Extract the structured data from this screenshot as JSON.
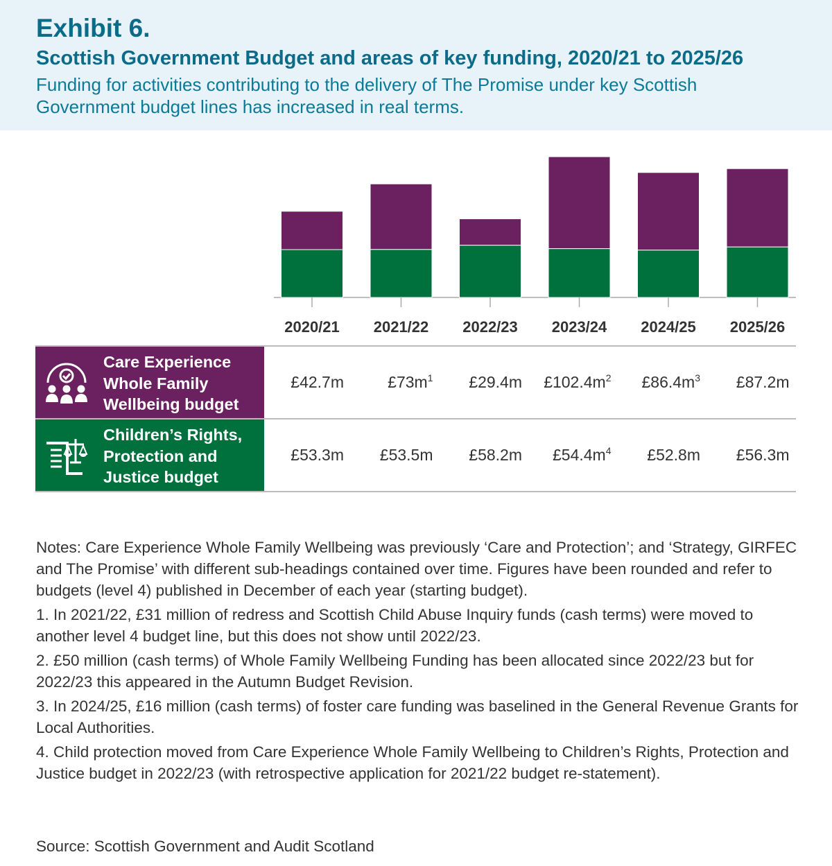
{
  "header": {
    "exhibit": "Exhibit 6.",
    "title": "Scottish Government Budget and areas of key funding, 2020/21 to 2025/26",
    "subtitle": "Funding for activities contributing to the delivery of The Promise under key Scottish Government budget lines has increased in real terms."
  },
  "chart_data": {
    "type": "bar",
    "stacked": true,
    "categories": [
      "2020/21",
      "2021/22",
      "2022/23",
      "2023/24",
      "2024/25",
      "2025/26"
    ],
    "series": [
      {
        "name": "Children's Rights, Protection and Justice budget",
        "color": "#00703c",
        "values": [
          53.3,
          53.5,
          58.2,
          54.4,
          52.8,
          56.3
        ],
        "labels": [
          "£53.3m",
          "£53.5m",
          "£58.2m",
          "£54.4m",
          "£52.8m",
          "£56.3m"
        ],
        "notes": [
          "",
          "",
          "",
          "4",
          "",
          ""
        ]
      },
      {
        "name": "Care Experience Whole Family Wellbeing budget",
        "color": "#6b2160",
        "values": [
          42.7,
          73,
          29.4,
          102.4,
          86.4,
          87.2
        ],
        "labels": [
          "£42.7m",
          "£73m",
          "£29.4m",
          "£102.4m",
          "£86.4m",
          "£87.2m"
        ],
        "notes": [
          "",
          "1",
          "",
          "2",
          "3",
          ""
        ]
      }
    ],
    "ylabel": "",
    "xlabel": "",
    "ylim": [
      0,
      160
    ]
  },
  "rows": [
    {
      "label_lines": [
        "Care Experience",
        "Whole Family",
        "Wellbeing budget"
      ],
      "icon": "family-wellbeing-icon"
    },
    {
      "label_lines": [
        "Children’s Rights,",
        "Protection and",
        "Justice budget"
      ],
      "icon": "scales-of-justice-icon"
    }
  ],
  "notes": [
    "Notes: Care Experience Whole Family Wellbeing was previously ‘Care and Protection’; and ‘Strategy, GIRFEC and The Promise’ with different sub-headings contained over time. Figures have been rounded and refer to budgets (level 4) published in December of each year (starting budget).",
    "1. In 2021/22, £31 million of redress and Scottish Child Abuse Inquiry funds (cash terms) were moved to another level 4 budget line, but this does not show until 2022/23.",
    "2. £50 million (cash terms) of Whole Family Wellbeing Funding has been allocated since 2022/23 but for 2022/23 this appeared in the Autumn Budget Revision.",
    "3. In 2024/25, £16 million (cash terms) of foster care funding was baselined in the General Revenue Grants for Local Authorities.",
    "4. Child protection moved from Care Experience Whole Family Wellbeing to Children’s Rights, Protection and Justice budget in 2022/23 (with retrospective application for 2021/22 budget re-statement)."
  ],
  "source": "Source: Scottish Government and Audit Scotland"
}
